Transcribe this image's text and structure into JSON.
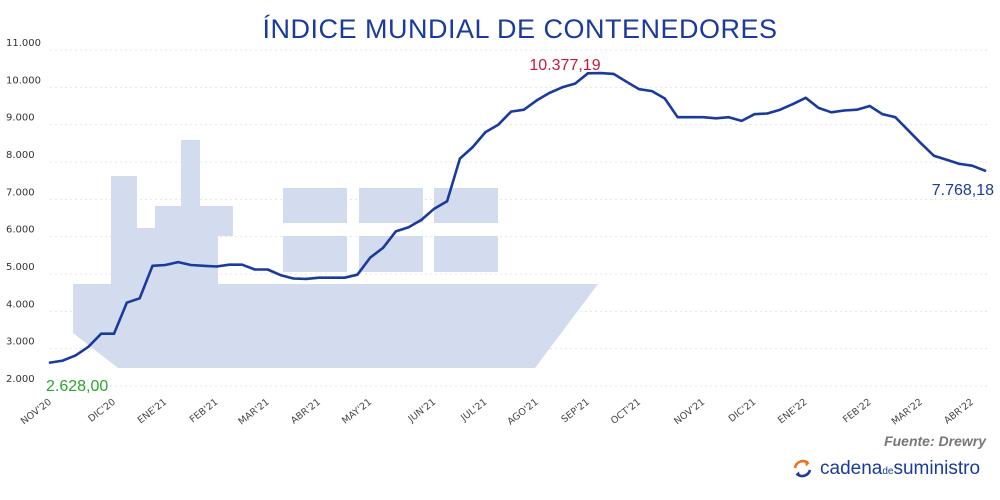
{
  "chart_data": {
    "type": "line",
    "title": "ÍNDICE MUNDIAL DE CONTENEDORES",
    "ylim": [
      2000,
      11000
    ],
    "yticks": [
      "2.000",
      "3.000",
      "4.000",
      "5.000",
      "6.000",
      "7.000",
      "8.000",
      "9.000",
      "10.000",
      "11.000"
    ],
    "ytick_values": [
      2000,
      3000,
      4000,
      5000,
      6000,
      7000,
      8000,
      9000,
      10000,
      11000
    ],
    "xticks": [
      {
        "label": "NOV'20",
        "x": 0
      },
      {
        "label": "DIC'20",
        "x": 5
      },
      {
        "label": "ENE'21",
        "x": 9
      },
      {
        "label": "FEB'21",
        "x": 13
      },
      {
        "label": "MAR'21",
        "x": 17
      },
      {
        "label": "ABR'21",
        "x": 21
      },
      {
        "label": "MAY'21",
        "x": 25
      },
      {
        "label": "JUN'21",
        "x": 30
      },
      {
        "label": "JUL'21",
        "x": 34
      },
      {
        "label": "AGO'21",
        "x": 38
      },
      {
        "label": "SEP'21",
        "x": 42
      },
      {
        "label": "OCT'21",
        "x": 46
      },
      {
        "label": "NOV'21",
        "x": 51
      },
      {
        "label": "DIC'21",
        "x": 55
      },
      {
        "label": "ENE'22",
        "x": 59
      },
      {
        "label": "FEB'22",
        "x": 64
      },
      {
        "label": "MAR'22",
        "x": 68
      },
      {
        "label": "ABR'22",
        "x": 72
      }
    ],
    "grid": true,
    "series": [
      {
        "color": "#1a3a9c",
        "values": [
          2628,
          2680,
          2820,
          3050,
          3400,
          3400,
          4230,
          4350,
          5220,
          5240,
          5320,
          5240,
          5220,
          5200,
          5250,
          5250,
          5120,
          5120,
          4970,
          4880,
          4870,
          4900,
          4900,
          4900,
          4980,
          5440,
          5700,
          6140,
          6250,
          6450,
          6750,
          6950,
          8090,
          8400,
          8800,
          9000,
          9350,
          9400,
          9650,
          9850,
          10000,
          10100,
          10377.19,
          10380,
          10360,
          10150,
          9950,
          9900,
          9700,
          9200,
          9200,
          9200,
          9170,
          9200,
          9100,
          9280,
          9300,
          9400,
          9550,
          9720,
          9450,
          9330,
          9380,
          9400,
          9500,
          9280,
          9200,
          8850,
          8500,
          8170,
          8060,
          7950,
          7900,
          7768.18
        ]
      }
    ],
    "annotations": [
      {
        "text": "10.377,19",
        "kind": "max"
      },
      {
        "text": "2.628,00",
        "kind": "min"
      },
      {
        "text": "7.768,18",
        "kind": "last"
      }
    ],
    "source": "Fuente: Drewry"
  },
  "brand": {
    "part1": "cadena",
    "part2": "de",
    "part3": "suministro"
  },
  "colors": {
    "line": "#1a3a9c",
    "ship": "#d3dcef",
    "max": "#c8173a",
    "min": "#2aa52a"
  }
}
